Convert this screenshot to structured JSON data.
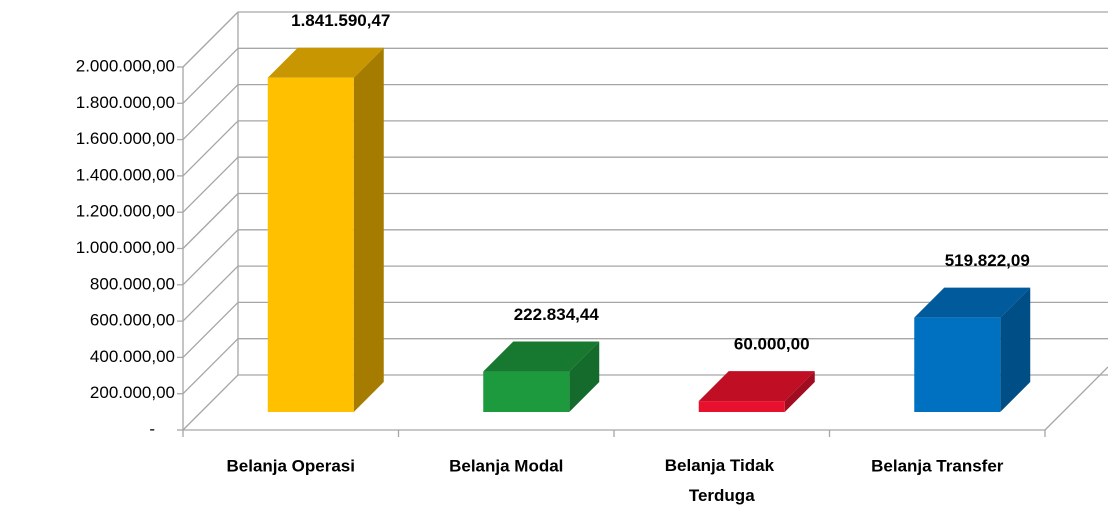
{
  "chart_data": {
    "type": "bar3d",
    "categories": [
      "Belanja Operasi",
      "Belanja Modal",
      "Belanja Tidak Terduga",
      "Belanja Transfer"
    ],
    "values": [
      1841590.47,
      222834.44,
      60000.0,
      519822.09
    ],
    "value_labels": [
      "1.841.590,47",
      "222.834,44",
      "60.000,00",
      "519.822,09"
    ],
    "colors": [
      "#FFC000",
      "#1E9A3E",
      "#E8112D",
      "#0070C0"
    ],
    "side_colors": [
      "#A67C00",
      "#156B2B",
      "#A00C20",
      "#004E86"
    ],
    "top_colors": [
      "#C89600",
      "#17782F",
      "#C00E25",
      "#005A9C"
    ],
    "ylim": [
      0,
      2000000
    ],
    "yticks": [
      {
        "value": 0,
        "label": "-"
      },
      {
        "value": 200000,
        "label": "200.000,00"
      },
      {
        "value": 400000,
        "label": "400.000,00"
      },
      {
        "value": 600000,
        "label": "600.000,00"
      },
      {
        "value": 800000,
        "label": "800.000,00"
      },
      {
        "value": 1000000,
        "label": "1.000.000,00"
      },
      {
        "value": 1200000,
        "label": "1.200.000,00"
      },
      {
        "value": 1400000,
        "label": "1.400.000,00"
      },
      {
        "value": 1600000,
        "label": "1.600.000,00"
      },
      {
        "value": 1800000,
        "label": "1.800.000,00"
      },
      {
        "value": 2000000,
        "label": "2.000.000,00"
      }
    ],
    "grid": true
  }
}
